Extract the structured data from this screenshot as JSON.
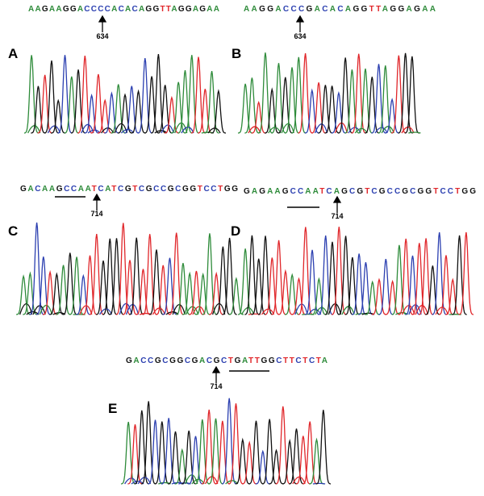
{
  "panels": [
    {
      "label": "A",
      "sequence": "AAGAAGGACCCCACACAGGTTAGGAGAA",
      "position": "634"
    },
    {
      "label": "B",
      "sequence": "AAGGACCCGACACAGGTTAGGAGAA",
      "position": "634"
    },
    {
      "label": "C",
      "sequence": "GACAAGCCAATCATCGTCGCCGCGGTCCTGG",
      "position": "714"
    },
    {
      "label": "D",
      "sequence": "GAGAAGCCAATCAGCGTCGCCGCGGTCCTGG",
      "position": "714"
    },
    {
      "label": "E",
      "sequence": "GACCGCGGCGACGCTGATTGGCTTCTCTA",
      "position": "714"
    }
  ]
}
